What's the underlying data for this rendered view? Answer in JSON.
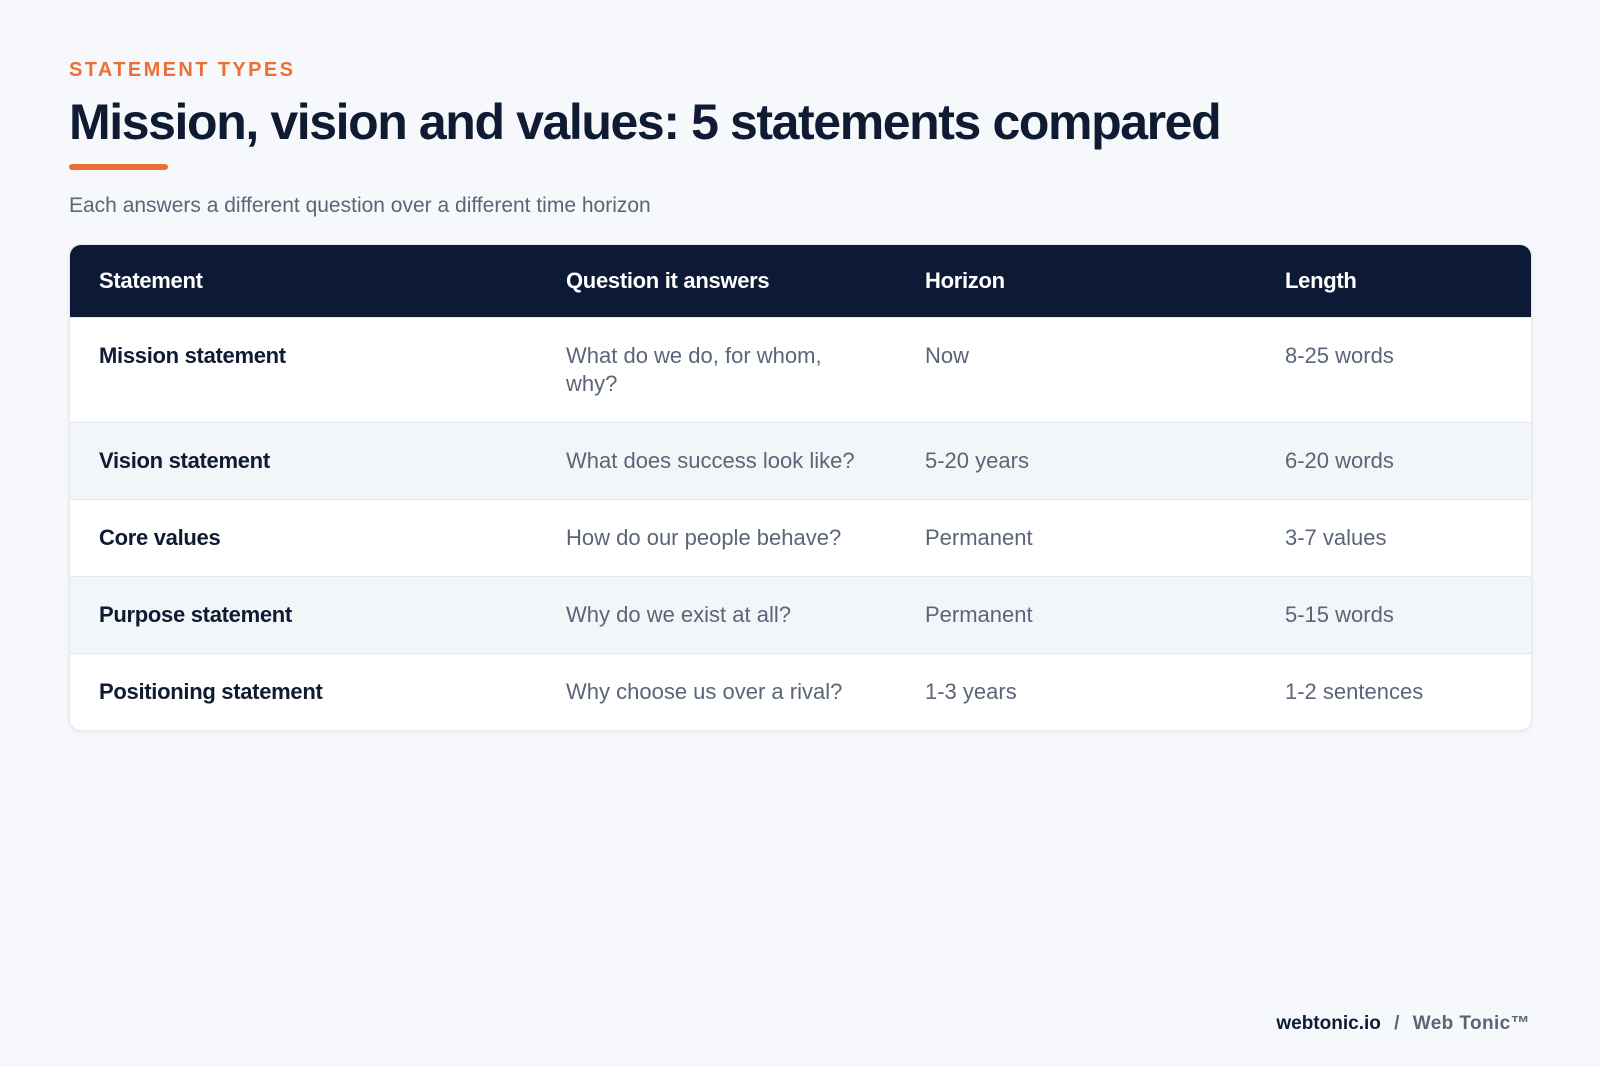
{
  "header": {
    "eyebrow": "STATEMENT TYPES",
    "title": "Mission, vision and values: 5 statements compared",
    "subtitle": "Each answers a different question over a different time horizon"
  },
  "table": {
    "columns": [
      "Statement",
      "Question it answers",
      "Horizon",
      "Length"
    ],
    "rows": [
      {
        "statement": "Mission statement",
        "question": "What do we do, for whom, why?",
        "horizon": "Now",
        "length": "8-25 words"
      },
      {
        "statement": "Vision statement",
        "question": "What does success look like?",
        "horizon": "5-20 years",
        "length": "6-20 words"
      },
      {
        "statement": "Core values",
        "question": "How do our people behave?",
        "horizon": "Permanent",
        "length": "3-7 values"
      },
      {
        "statement": "Purpose statement",
        "question": "Why do we exist at all?",
        "horizon": "Permanent",
        "length": "5-15 words"
      },
      {
        "statement": "Positioning statement",
        "question": "Why choose us over a rival?",
        "horizon": "1-3 years",
        "length": "1-2 sentences"
      }
    ]
  },
  "footer": {
    "domain": "webtonic.io",
    "separator": "/",
    "brand": "Web Tonic™"
  },
  "colors": {
    "accent": "#ec6f35",
    "header_bg": "#0c1a35",
    "page_bg": "#f6f8fb"
  }
}
